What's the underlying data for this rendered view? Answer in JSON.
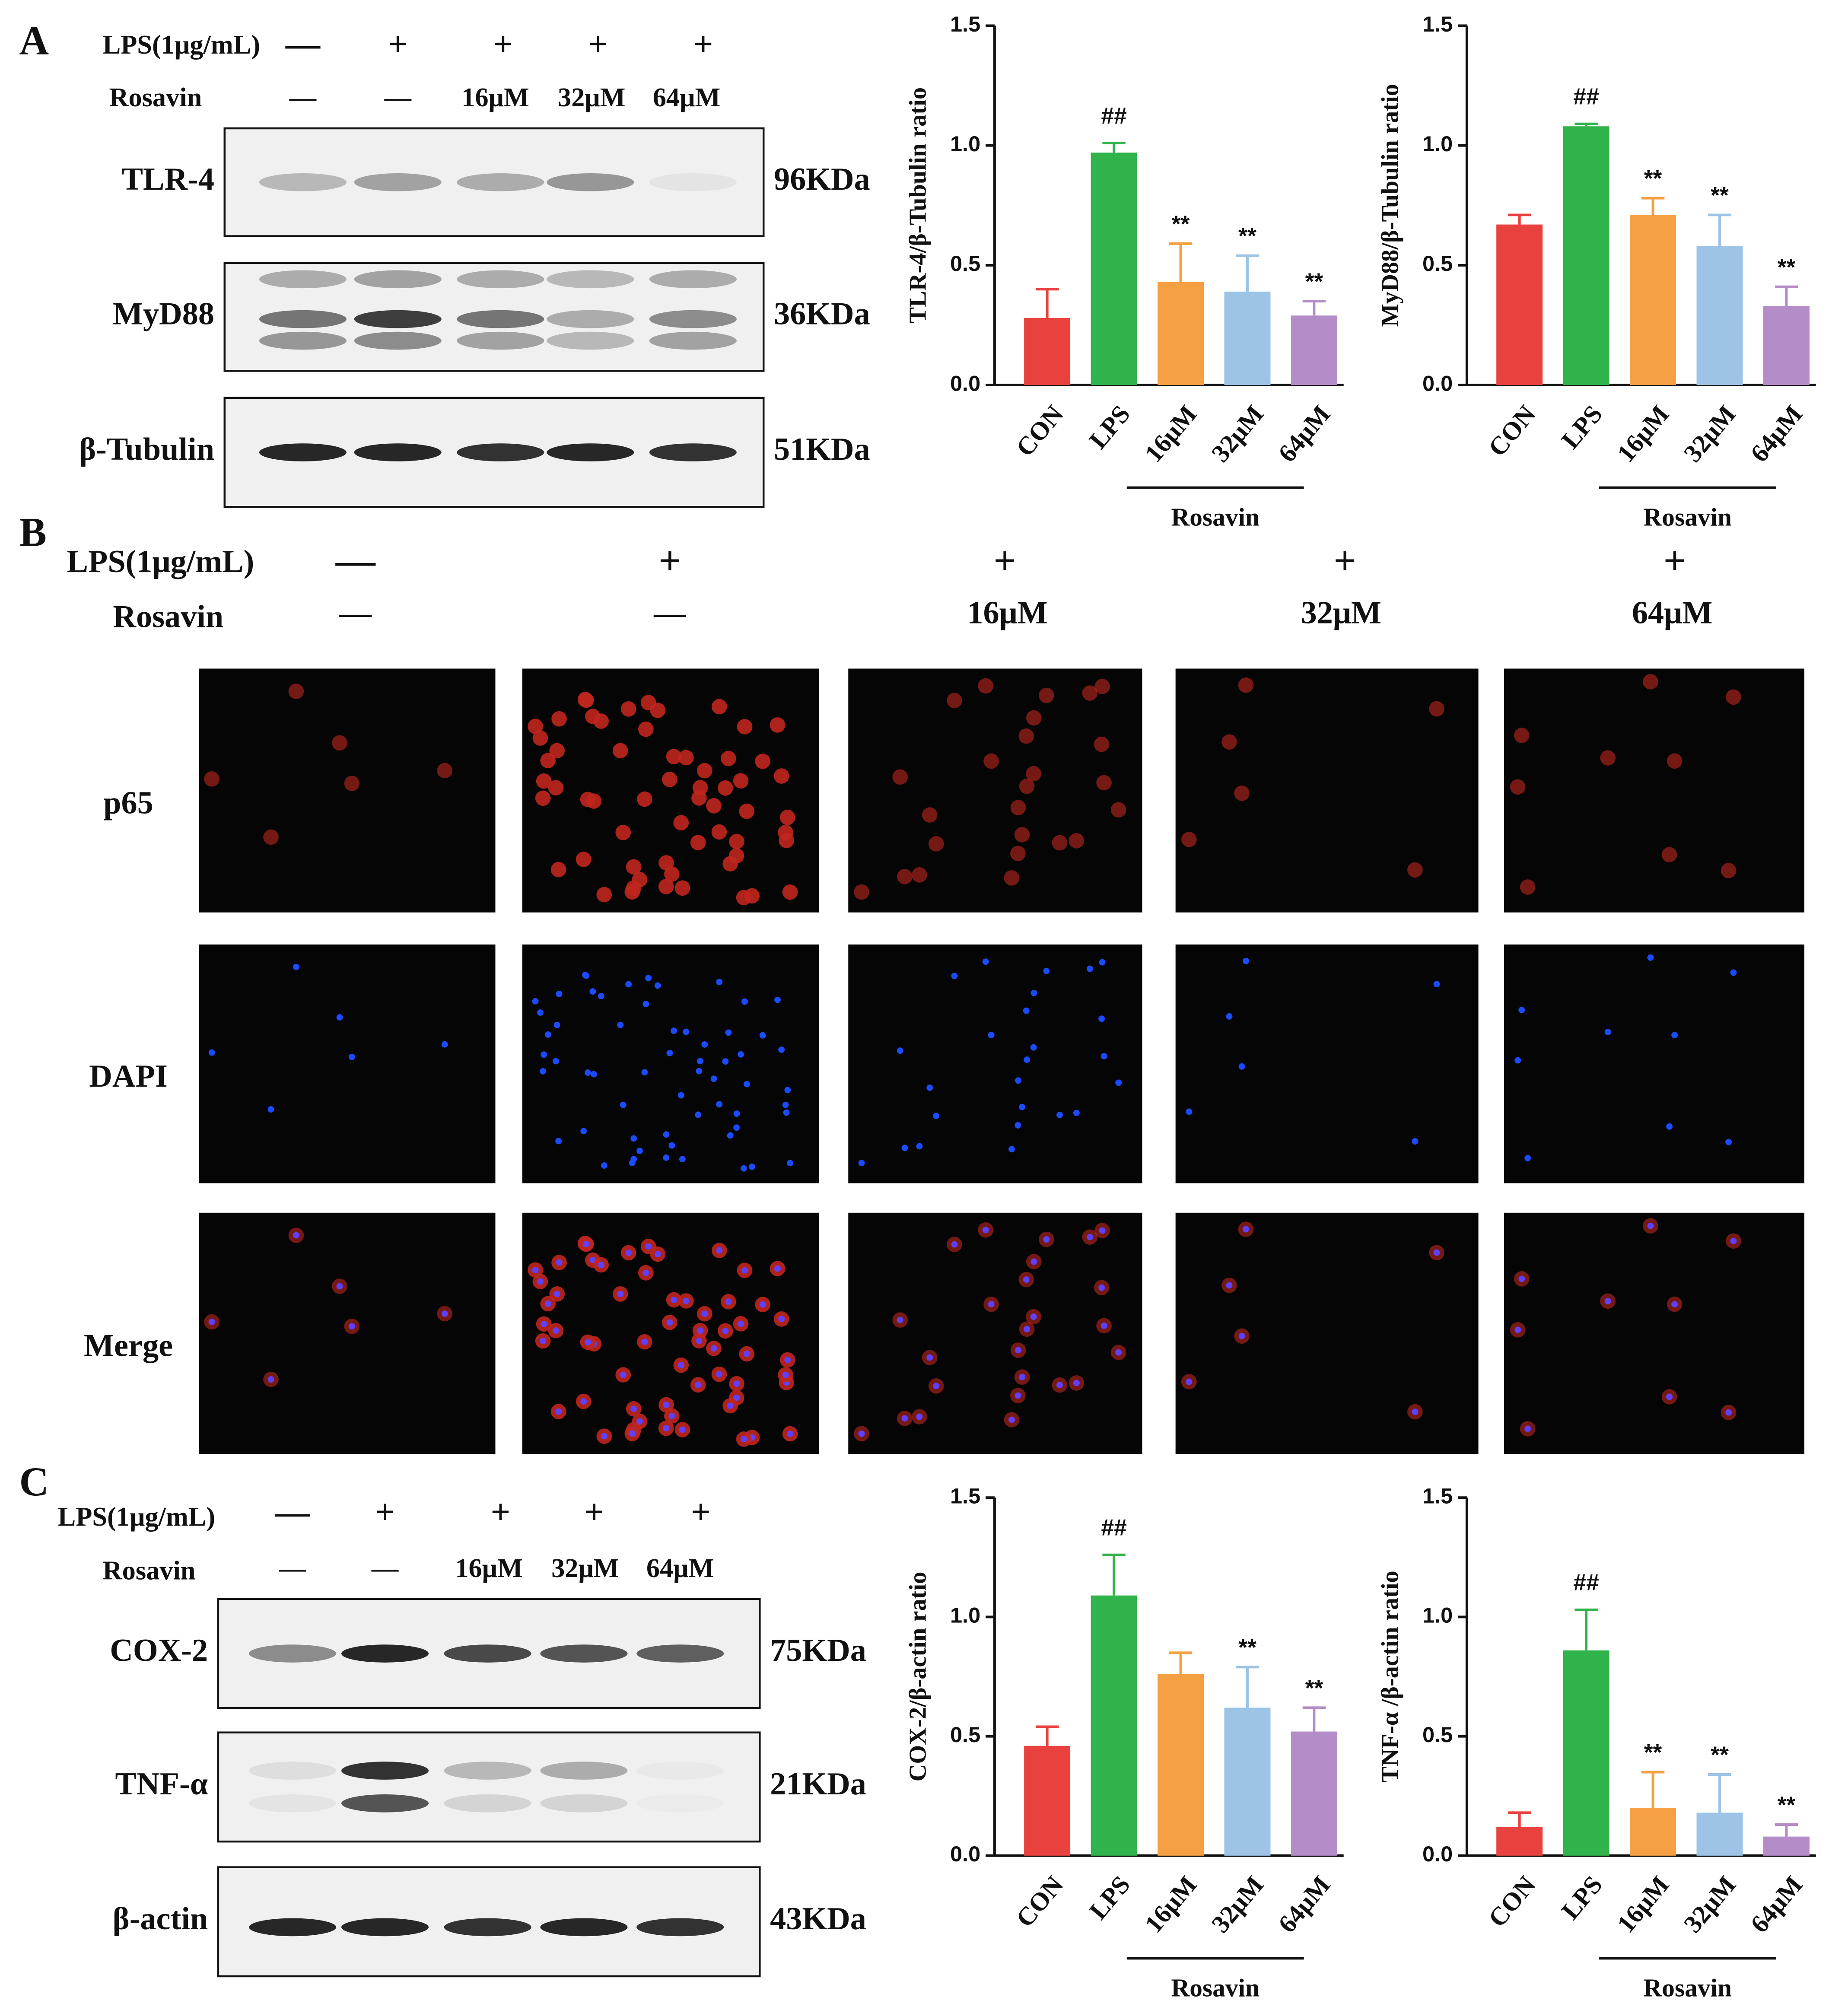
{
  "chart_data": [
    {
      "type": "bar",
      "y_label": "TLR-4/β-Tubulin ratio",
      "categories": [
        "CON",
        "LPS",
        "16μM",
        "32μM",
        "64μM"
      ],
      "group_label": "Rosavin",
      "values": [
        0.28,
        0.97,
        0.43,
        0.39,
        0.29
      ],
      "errors": [
        0.12,
        0.04,
        0.16,
        0.15,
        0.06
      ],
      "marks": [
        null,
        "##",
        "**",
        "**",
        "**"
      ],
      "colors": [
        "#e8413e",
        "#2fb34a",
        "#f4a043",
        "#9dc3e6",
        "#b48cc8"
      ],
      "ylim": [
        0,
        1.5
      ],
      "yticks": [
        {
          "value": 0,
          "label": "0.0"
        },
        0.5,
        {
          "value": 1,
          "label": "1.0"
        },
        1.5
      ]
    },
    {
      "type": "bar",
      "y_label": "MyD88/β-Tubulin ratio",
      "categories": [
        "CON",
        "LPS",
        "16μM",
        "32μM",
        "64μM"
      ],
      "group_label": "Rosavin",
      "values": [
        0.67,
        1.08,
        0.71,
        0.58,
        0.33
      ],
      "errors": [
        0.04,
        0.01,
        0.07,
        0.13,
        0.08
      ],
      "marks": [
        null,
        "##",
        "**",
        "**",
        "**"
      ],
      "colors": [
        "#e8413e",
        "#2fb34a",
        "#f4a043",
        "#9dc3e6",
        "#b48cc8"
      ],
      "ylim": [
        0,
        1.5
      ],
      "yticks": [
        {
          "value": 0,
          "label": "0.0"
        },
        0.5,
        {
          "value": 1,
          "label": "1.0"
        },
        1.5
      ]
    },
    {
      "type": "bar",
      "y_label": "COX-2/β-actin ratio",
      "categories": [
        "CON",
        "LPS",
        "16μM",
        "32μM",
        "64μM"
      ],
      "group_label": "Rosavin",
      "values": [
        0.46,
        1.09,
        0.76,
        0.62,
        0.52
      ],
      "errors": [
        0.08,
        0.17,
        0.09,
        0.17,
        0.1
      ],
      "marks": [
        null,
        "##",
        null,
        "**",
        "**"
      ],
      "colors": [
        "#e8413e",
        "#2fb34a",
        "#f4a043",
        "#9dc3e6",
        "#b48cc8"
      ],
      "ylim": [
        0,
        1.5
      ],
      "yticks": [
        {
          "value": 0,
          "label": "0.0"
        },
        0.5,
        {
          "value": 1,
          "label": "1.0"
        },
        1.5
      ]
    },
    {
      "type": "bar",
      "y_label": "TNF-α /β-actin ratio",
      "categories": [
        "CON",
        "LPS",
        "16μM",
        "32μM",
        "64μM"
      ],
      "group_label": "Rosavin",
      "values": [
        0.12,
        0.86,
        0.2,
        0.18,
        0.08
      ],
      "errors": [
        0.06,
        0.17,
        0.15,
        0.16,
        0.05
      ],
      "marks": [
        null,
        "##",
        "**",
        "**",
        "**"
      ],
      "colors": [
        "#e8413e",
        "#2fb34a",
        "#f4a043",
        "#9dc3e6",
        "#b48cc8"
      ],
      "ylim": [
        0,
        1.5
      ],
      "yticks": [
        {
          "value": 0,
          "label": "0.0"
        },
        0.5,
        {
          "value": 1,
          "label": "1.0"
        },
        1.5
      ]
    }
  ],
  "panel_a": {
    "letter": "A",
    "lps_label": "LPS(1μg/mL)",
    "lps": [
      "—",
      "+",
      "+",
      "+",
      "+"
    ],
    "rosavin_label": "Rosavin",
    "rosavin": [
      "—",
      "—",
      "16μM",
      "32μM",
      "64μM"
    ],
    "blots": [
      {
        "protein": "TLR-4",
        "size": "96KDa"
      },
      {
        "protein": "MyD88",
        "size": "36KDa"
      },
      {
        "protein": "β-Tubulin",
        "size": "51KDa"
      }
    ]
  },
  "panel_b": {
    "letter": "B",
    "lps_label": "LPS(1μg/mL)",
    "lps": [
      "—",
      "+",
      "+",
      "+",
      "+"
    ],
    "rosavin_label": "Rosavin",
    "rosavin": [
      "—",
      "—",
      "16μM",
      "32μM",
      "64μM"
    ],
    "rows": [
      "p65",
      "DAPI",
      "Merge"
    ]
  },
  "panel_c": {
    "letter": "C",
    "lps_label": "LPS(1μg/mL)",
    "lps": [
      "—",
      "+",
      "+",
      "+",
      "+"
    ],
    "rosavin_label": "Rosavin",
    "rosavin": [
      "—",
      "—",
      "16μM",
      "32μM",
      "64μM"
    ],
    "blots": [
      {
        "protein": "COX-2",
        "size": "75KDa"
      },
      {
        "protein": "TNF-α",
        "size": "21KDa"
      },
      {
        "protein": "β-actin",
        "size": "43KDa"
      }
    ]
  }
}
